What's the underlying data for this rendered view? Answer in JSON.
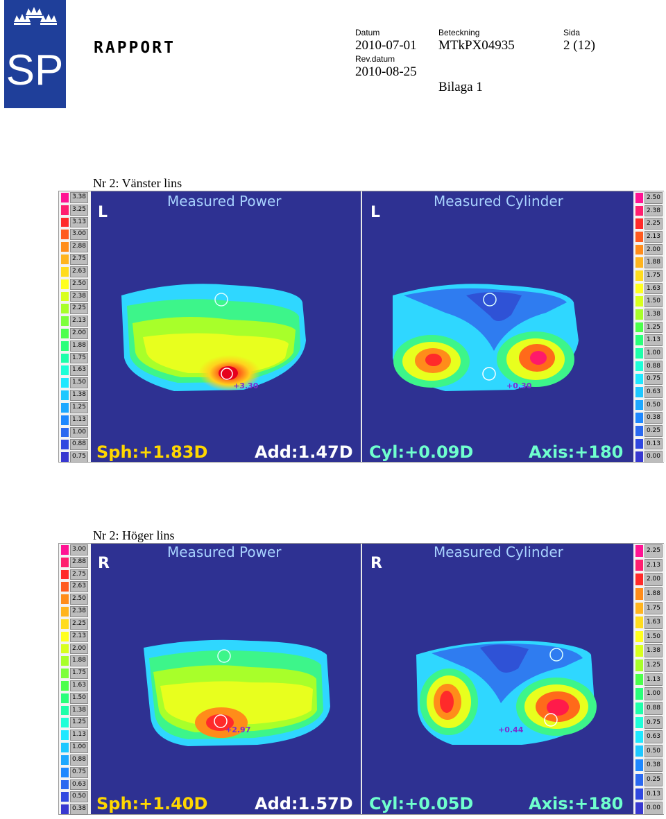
{
  "header": {
    "report_title": "RAPPORT",
    "date_label": "Datum",
    "date": "2010-07-01",
    "rev_label": "Rev.datum",
    "rev_date": "2010-08-25",
    "ref_label": "Beteckning",
    "ref": "MTkPX04935",
    "page_label": "Sida",
    "page": "2 (12)",
    "appendix": "Bilaga 1",
    "logo_text": "SP"
  },
  "left_lens": {
    "title": "Nr 2: Vänster lins",
    "eye": "L",
    "power": {
      "title": "Measured Power",
      "scale": [
        "3.38",
        "3.25",
        "3.13",
        "3.00",
        "2.88",
        "2.75",
        "2.63",
        "2.50",
        "2.38",
        "2.25",
        "2.13",
        "2.00",
        "1.88",
        "1.75",
        "1.63",
        "1.50",
        "1.38",
        "1.25",
        "1.13",
        "1.00",
        "0.88",
        "0.75"
      ],
      "point_value": "+3.30",
      "sph": "Sph:+1.83D",
      "add": "Add:1.47D"
    },
    "cylinder": {
      "title": "Measured Cylinder",
      "scale": [
        "2.50",
        "2.38",
        "2.25",
        "2.13",
        "2.00",
        "1.88",
        "1.75",
        "1.63",
        "1.50",
        "1.38",
        "1.25",
        "1.13",
        "1.00",
        "0.88",
        "0.75",
        "0.63",
        "0.50",
        "0.38",
        "0.25",
        "0.13",
        "0.00"
      ],
      "point_value": "+0.30",
      "cyl": "Cyl:+0.09D",
      "axis": "Axis:+180"
    }
  },
  "right_lens": {
    "title": "Nr 2: Höger lins",
    "eye": "R",
    "power": {
      "title": "Measured Power",
      "scale": [
        "3.00",
        "2.88",
        "2.75",
        "2.63",
        "2.50",
        "2.38",
        "2.25",
        "2.13",
        "2.00",
        "1.88",
        "1.75",
        "1.63",
        "1.50",
        "1.38",
        "1.25",
        "1.13",
        "1.00",
        "0.88",
        "0.75",
        "0.63",
        "0.50",
        "0.38"
      ],
      "point_value": "+2.97",
      "sph": "Sph:+1.40D",
      "add": "Add:1.57D"
    },
    "cylinder": {
      "title": "Measured Cylinder",
      "scale": [
        "2.25",
        "2.13",
        "2.00",
        "1.88",
        "1.75",
        "1.63",
        "1.50",
        "1.38",
        "1.25",
        "1.13",
        "1.00",
        "0.88",
        "0.75",
        "0.63",
        "0.50",
        "0.38",
        "0.25",
        "0.13",
        "0.00"
      ],
      "point_value": "+0.44",
      "cyl": "Cyl:+0.05D",
      "axis": "Axis:+180"
    }
  },
  "scale_colors": [
    "#ff1493",
    "#ff1f6f",
    "#ff2a2a",
    "#ff5a1f",
    "#ff8c1a",
    "#ffb41e",
    "#ffdc1e",
    "#ffff1e",
    "#d8ff1e",
    "#a8ff2a",
    "#7cff3a",
    "#4cff4c",
    "#2aff7a",
    "#1effaa",
    "#1effd8",
    "#1ee8ff",
    "#1ec8ff",
    "#1ea8ff",
    "#1e88ff",
    "#2a68f0",
    "#3048e0",
    "#3838d0"
  ]
}
